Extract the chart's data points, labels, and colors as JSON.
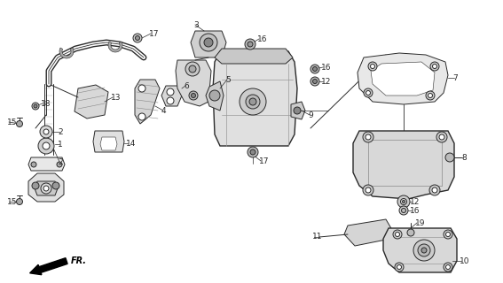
{
  "bg_color": "#ffffff",
  "lc": "#2a2a2a",
  "lw_thin": 0.7,
  "lw_med": 1.0,
  "lw_thick": 1.5,
  "fs": 6.5,
  "fig_w": 5.67,
  "fig_h": 3.2,
  "dpi": 100
}
